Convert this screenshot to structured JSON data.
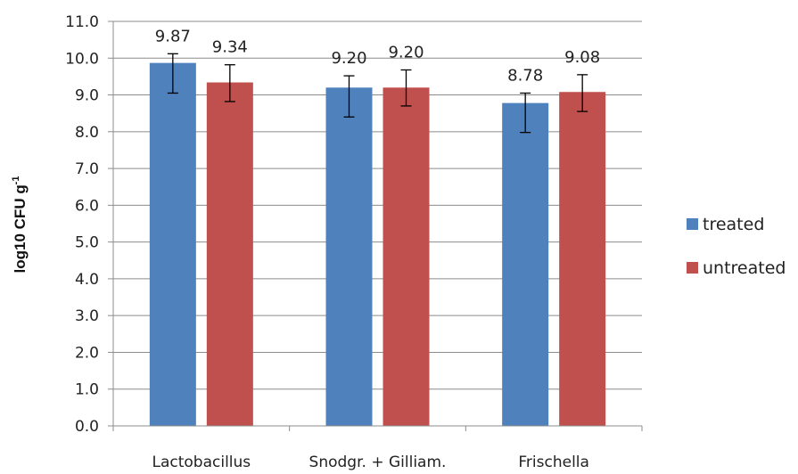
{
  "chart_data": {
    "type": "bar",
    "title": "",
    "xlabel": "",
    "ylabel": "log10 CFU g",
    "ylabel_superscript": "-1",
    "ylim": [
      0,
      11
    ],
    "ytick_step": 1,
    "ytick_labels": [
      "0.0",
      "1.0",
      "2.0",
      "3.0",
      "4.0",
      "5.0",
      "6.0",
      "7.0",
      "8.0",
      "9.0",
      "10.0",
      "11.0"
    ],
    "grid": true,
    "legend_position": "right",
    "categories": [
      "Lactobacillus",
      "Snodgr. + Gilliam.",
      "Frischella"
    ],
    "series": [
      {
        "name": "treated",
        "color": "#4f81bd",
        "values": [
          9.87,
          9.2,
          8.78
        ],
        "labels": [
          "9.87",
          "9.20",
          "8.78"
        ],
        "error_low": [
          9.05,
          8.4,
          7.98
        ],
        "error_high": [
          10.12,
          9.52,
          9.05
        ]
      },
      {
        "name": "untreated",
        "color": "#c0504d",
        "values": [
          9.34,
          9.2,
          9.08
        ],
        "labels": [
          "9.34",
          "9.20",
          "9.08"
        ],
        "error_low": [
          8.82,
          8.7,
          8.55
        ],
        "error_high": [
          9.82,
          9.68,
          9.55
        ]
      }
    ]
  }
}
